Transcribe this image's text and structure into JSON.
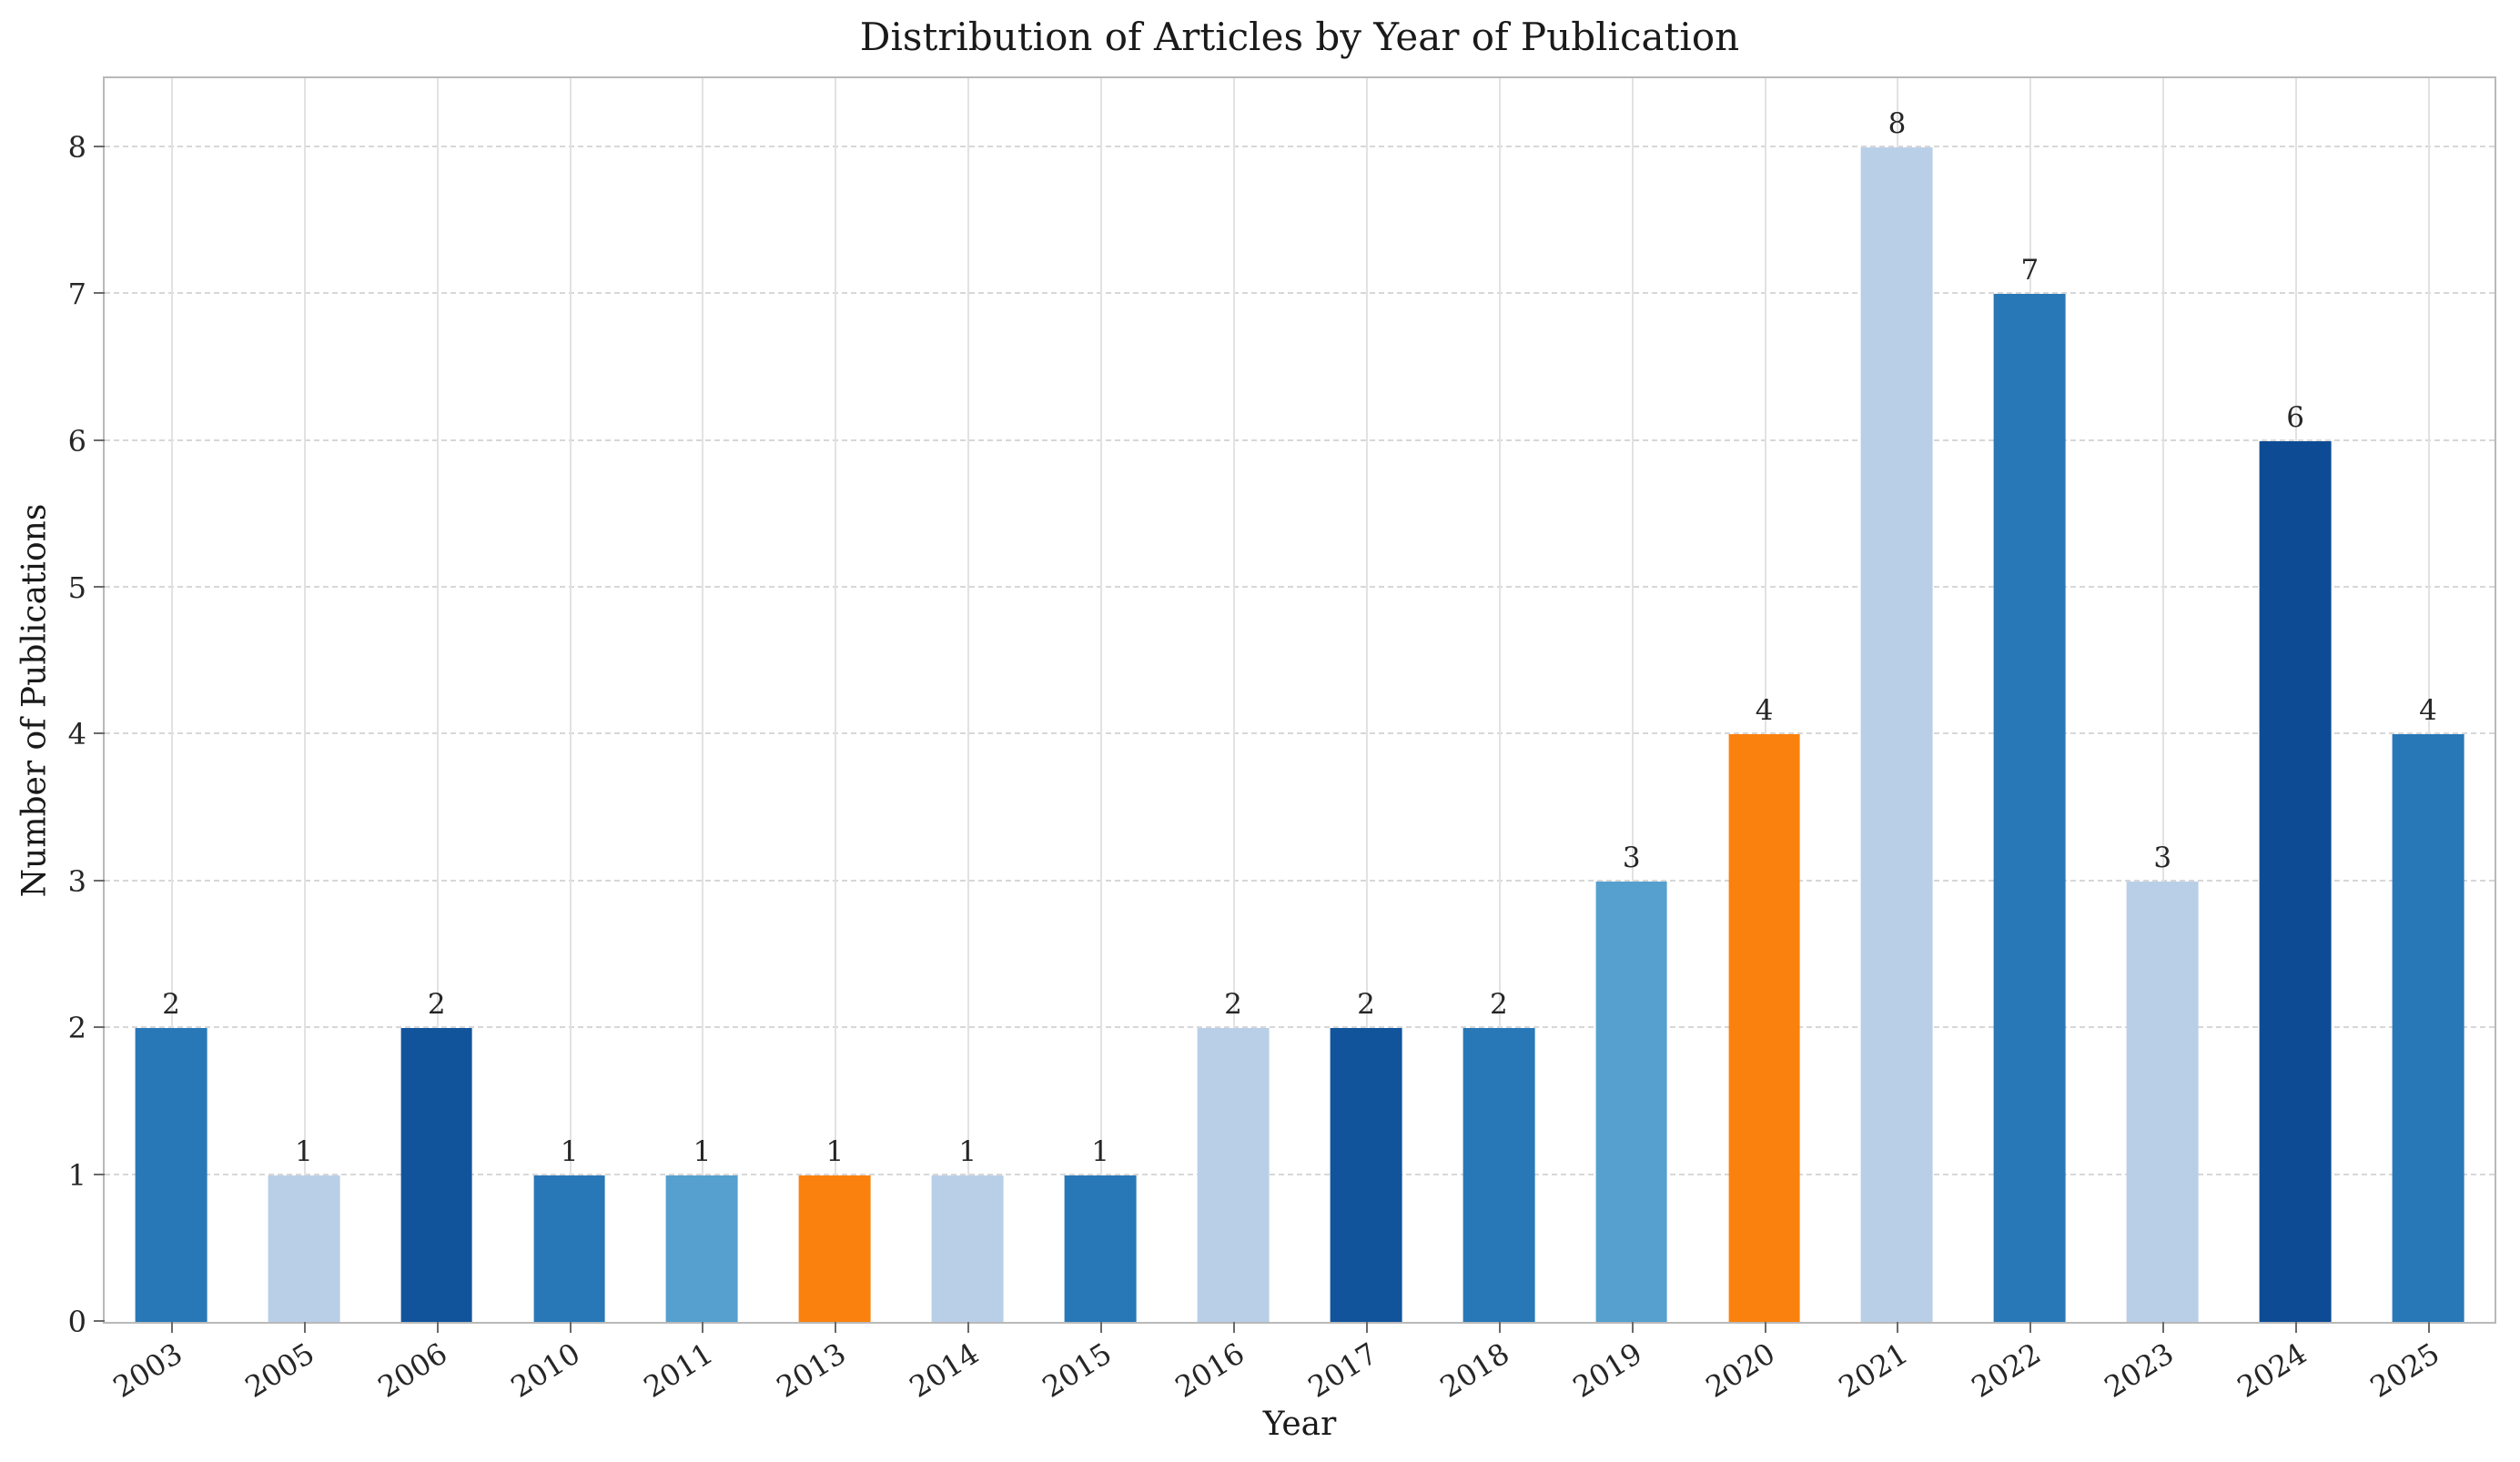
{
  "chart_data": {
    "type": "bar",
    "title": "Distribution of Articles by Year of Publication",
    "xlabel": "Year",
    "ylabel": "Number of Publications",
    "categories": [
      "2003",
      "2005",
      "2006",
      "2010",
      "2011",
      "2013",
      "2014",
      "2015",
      "2016",
      "2017",
      "2018",
      "2019",
      "2020",
      "2021",
      "2022",
      "2023",
      "2024",
      "2025"
    ],
    "values": [
      2,
      1,
      2,
      1,
      1,
      1,
      1,
      1,
      2,
      2,
      2,
      3,
      4,
      8,
      7,
      3,
      6,
      4
    ],
    "bar_colors": [
      "#2878b8",
      "#b9cfe8",
      "#11549c",
      "#2878b8",
      "#55a0cf",
      "#fb810e",
      "#b9cfe8",
      "#2878b8",
      "#b9cfe8",
      "#11549c",
      "#2878b8",
      "#55a0cf",
      "#fb810e",
      "#b9cfe8",
      "#2878b8",
      "#b9cfe8",
      "#0d4c94",
      "#2878b8"
    ],
    "yticks": [
      0,
      1,
      2,
      3,
      4,
      5,
      6,
      7,
      8
    ],
    "ylim": [
      0,
      8.47
    ],
    "grid": {
      "horizontal": "dashed",
      "vertical": "solid"
    },
    "legend": "none",
    "bar_value_labels_shown": true
  },
  "colors": {
    "background": "#ffffff",
    "grid_horizontal": "#d7d7d7",
    "grid_vertical": "#e2e2e2",
    "spine": "#b9b9b9",
    "text": "#262626",
    "tick": "#6a6a6a"
  }
}
